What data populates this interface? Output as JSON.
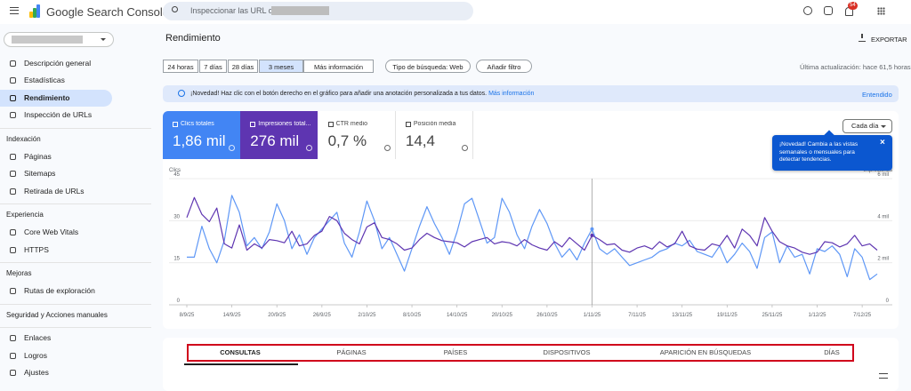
{
  "header": {
    "product": "Google Search Console",
    "search_placeholder": "Inspeccionar las URL de",
    "notifications": "54"
  },
  "sidebar": {
    "top": [
      "Descripción general",
      "Estadísticas",
      "Rendimiento",
      "Inspección de URLs"
    ],
    "active": "Rendimiento",
    "sections": [
      {
        "title": "Indexación",
        "items": [
          "Páginas",
          "Sitemaps",
          "Retirada de URLs"
        ]
      },
      {
        "title": "Experiencia",
        "items": [
          "Core Web Vitals",
          "HTTPS"
        ]
      },
      {
        "title": "Mejoras",
        "items": [
          "Rutas de exploración"
        ]
      },
      {
        "title": "Seguridad y Acciones manuales"
      }
    ],
    "bottom": [
      "Enlaces",
      "Logros",
      "Ajustes"
    ]
  },
  "main": {
    "title": "Rendimiento",
    "export": "EXPORTAR",
    "time_ranges": [
      "24 horas",
      "7 días",
      "28 días",
      "3 meses"
    ],
    "more": "Más información",
    "search_type": "Tipo de búsqueda: Web",
    "add_filter": "Añadir filtro",
    "last_update": "Última actualización: hace 61,5 horas"
  },
  "banner": {
    "text": "¡Novedad! Haz clic con el botón derecho en el gráfico para añadir una anotación personalizada a tus datos.",
    "link": "Más información",
    "action": "Entendido"
  },
  "metrics": [
    {
      "label": "Clics totales",
      "value": "1,86 mil"
    },
    {
      "label": "Impresiones total...",
      "value": "276 mil"
    },
    {
      "label": "CTR medio",
      "value": "0,7 %"
    },
    {
      "label": "Posición media",
      "value": "14,4"
    }
  ],
  "granularity": "Cada día",
  "tooltip": "¡Novedad! Cambia a las vistas semanales o mensuales para detectar tendencias.",
  "tabs": [
    "CONSULTAS",
    "PÁGINAS",
    "PAÍSES",
    "DISPOSITIVOS",
    "APARICIÓN EN BÚSQUEDAS",
    "DÍAS"
  ],
  "chart_data": {
    "type": "line",
    "y_label": "Clics",
    "y2_label": "Impresiones",
    "grid": true,
    "categories": [
      "8/9/25",
      null,
      null,
      null,
      null,
      null,
      "14/9/25",
      null,
      null,
      null,
      null,
      null,
      "20/9/25",
      null,
      null,
      null,
      null,
      null,
      "26/9/25",
      null,
      null,
      null,
      null,
      null,
      "2/10/25",
      null,
      null,
      null,
      null,
      null,
      "8/10/25",
      null,
      null,
      null,
      null,
      null,
      "14/10/25",
      null,
      null,
      null,
      null,
      null,
      "20/10/25",
      null,
      null,
      null,
      null,
      null,
      "26/10/25",
      null,
      null,
      null,
      null,
      null,
      "1/11/25",
      null,
      null,
      null,
      null,
      null,
      "7/11/25",
      null,
      null,
      null,
      null,
      null,
      "13/11/25",
      null,
      null,
      null,
      null,
      null,
      "19/11/25",
      null,
      null,
      null,
      null,
      null,
      "25/11/25",
      null,
      null,
      null,
      null,
      null,
      "1/12/25",
      null,
      null,
      null,
      null,
      null,
      "7/12/25",
      null,
      null
    ],
    "ylim": [
      0,
      45
    ],
    "yticks": [
      0,
      15,
      30,
      45
    ],
    "y2lim": [
      0,
      6000
    ],
    "y2ticks": [
      0,
      {
        "value": 2000,
        "label": "2 mil"
      },
      {
        "value": 4000,
        "label": "4 mil"
      },
      {
        "value": 6000,
        "label": "6 mil"
      }
    ],
    "series": [
      {
        "name": "Clics totales",
        "color": "#5e97f6",
        "values": [
          17,
          17,
          28,
          20,
          15,
          23,
          39,
          33,
          21,
          24,
          20,
          26,
          36,
          30,
          20,
          25,
          18,
          24,
          27,
          30,
          33,
          22,
          17,
          26,
          37,
          30,
          20,
          24,
          18,
          12,
          20,
          28,
          35,
          29,
          24,
          18,
          26,
          36,
          38,
          30,
          22,
          24,
          38,
          33,
          25,
          20,
          28,
          34,
          29,
          22,
          17,
          20,
          16,
          22,
          27,
          20,
          18,
          20,
          17,
          14,
          15,
          16,
          17,
          19,
          20,
          22,
          21,
          23,
          19,
          18,
          17,
          21,
          15,
          18,
          22,
          19,
          13,
          24,
          26,
          15,
          21,
          17,
          18,
          11,
          20,
          19,
          21,
          18,
          10,
          20,
          17,
          9,
          11
        ]
      },
      {
        "name": "Impresiones totales",
        "color": "#5e35b1",
        "axis": "y2",
        "values": [
          4150,
          5100,
          4300,
          3950,
          4600,
          2900,
          2700,
          3800,
          2600,
          2900,
          2700,
          3100,
          3050,
          2950,
          3500,
          2800,
          2900,
          3300,
          3500,
          4200,
          4000,
          3400,
          3100,
          2900,
          3700,
          3900,
          3200,
          3100,
          2900,
          2600,
          2700,
          3100,
          3400,
          3200,
          3050,
          3000,
          2950,
          2750,
          3000,
          3100,
          3200,
          2900,
          3000,
          2950,
          2800,
          3100,
          2850,
          2700,
          2600,
          3000,
          2750,
          3200,
          2900,
          2600,
          3300,
          3100,
          2850,
          2900,
          2600,
          2500,
          2700,
          2800,
          2650,
          3000,
          2750,
          2900,
          3500,
          2800,
          2650,
          2600,
          2900,
          2800,
          3300,
          2700,
          3600,
          3300,
          2800,
          4150,
          3500,
          3000,
          2800,
          2700,
          2500,
          2400,
          2500,
          3000,
          2950,
          2750,
          2900,
          3300,
          2800,
          2900,
          2600
        ]
      }
    ]
  }
}
